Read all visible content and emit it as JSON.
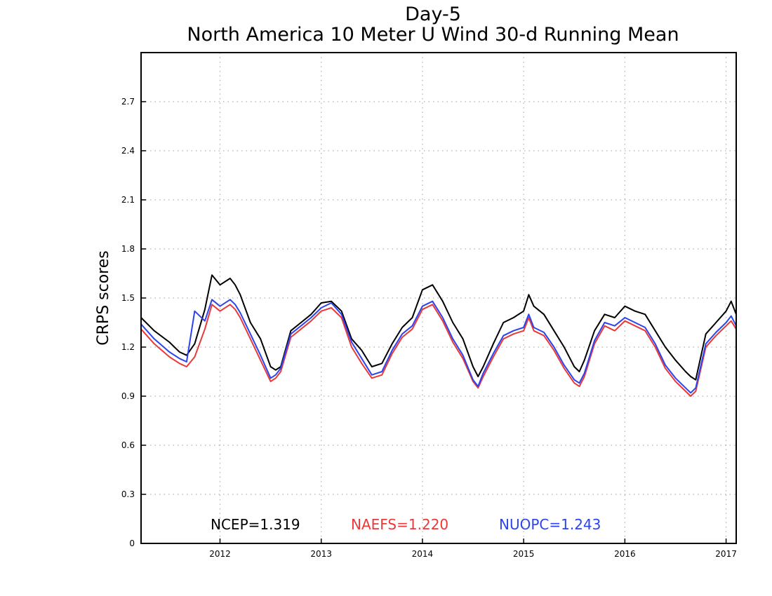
{
  "chart_data": {
    "type": "line",
    "title": "Day-5",
    "subtitle": "North America 10 Meter U Wind 30-d Running Mean",
    "ylabel": "CRPS scores",
    "xlabel": "",
    "xlim": [
      2011.22,
      2017.1
    ],
    "ylim": [
      0,
      3.0
    ],
    "yticks": [
      0,
      0.3,
      0.6,
      0.9,
      1.2,
      1.5,
      1.8,
      2.1,
      2.4,
      2.7
    ],
    "ytick_labels": [
      "0",
      "0.3",
      "0.6",
      "0.9",
      "1.2",
      "1.5",
      "1.8",
      "2.1",
      "2.4",
      "2.7"
    ],
    "xticks": [
      2012,
      2013,
      2014,
      2015,
      2016,
      2017
    ],
    "xtick_labels": [
      "2012",
      "2013",
      "2014",
      "2015",
      "2016",
      "2017"
    ],
    "grid": true,
    "legend_position": "bottom-center",
    "x": [
      2011.22,
      2011.35,
      2011.5,
      2011.6,
      2011.67,
      2011.75,
      2011.85,
      2011.92,
      2012.0,
      2012.1,
      2012.15,
      2012.2,
      2012.3,
      2012.4,
      2012.5,
      2012.55,
      2012.6,
      2012.7,
      2012.8,
      2012.9,
      2013.0,
      2013.1,
      2013.2,
      2013.3,
      2013.4,
      2013.5,
      2013.6,
      2013.7,
      2013.8,
      2013.9,
      2014.0,
      2014.1,
      2014.2,
      2014.3,
      2014.4,
      2014.5,
      2014.55,
      2014.6,
      2014.7,
      2014.8,
      2014.9,
      2015.0,
      2015.05,
      2015.1,
      2015.2,
      2015.3,
      2015.4,
      2015.5,
      2015.55,
      2015.6,
      2015.7,
      2015.8,
      2015.9,
      2016.0,
      2016.1,
      2016.2,
      2016.3,
      2016.4,
      2016.5,
      2016.6,
      2016.65,
      2016.7,
      2016.8,
      2016.9,
      2017.0,
      2017.05,
      2017.1
    ],
    "series": [
      {
        "name": "NCEP",
        "color": "#000000",
        "values": [
          1.38,
          1.3,
          1.23,
          1.17,
          1.15,
          1.22,
          1.43,
          1.64,
          1.58,
          1.62,
          1.58,
          1.52,
          1.35,
          1.25,
          1.08,
          1.06,
          1.08,
          1.3,
          1.35,
          1.4,
          1.47,
          1.48,
          1.42,
          1.25,
          1.18,
          1.08,
          1.1,
          1.22,
          1.32,
          1.38,
          1.55,
          1.58,
          1.48,
          1.35,
          1.25,
          1.08,
          1.02,
          1.08,
          1.22,
          1.35,
          1.38,
          1.42,
          1.52,
          1.45,
          1.4,
          1.3,
          1.2,
          1.08,
          1.05,
          1.12,
          1.3,
          1.4,
          1.38,
          1.45,
          1.42,
          1.4,
          1.3,
          1.2,
          1.12,
          1.05,
          1.02,
          1.0,
          1.28,
          1.35,
          1.42,
          1.48,
          1.4
        ]
      },
      {
        "name": "NAEFS",
        "color": "#e83a3a",
        "values": [
          1.31,
          1.22,
          1.14,
          1.1,
          1.08,
          1.14,
          1.31,
          1.46,
          1.42,
          1.46,
          1.43,
          1.38,
          1.25,
          1.12,
          0.99,
          1.01,
          1.05,
          1.26,
          1.31,
          1.36,
          1.42,
          1.44,
          1.38,
          1.2,
          1.1,
          1.01,
          1.03,
          1.16,
          1.26,
          1.31,
          1.43,
          1.46,
          1.36,
          1.23,
          1.13,
          0.99,
          0.95,
          1.02,
          1.14,
          1.25,
          1.28,
          1.3,
          1.38,
          1.3,
          1.27,
          1.18,
          1.07,
          0.98,
          0.96,
          1.02,
          1.22,
          1.33,
          1.3,
          1.36,
          1.33,
          1.3,
          1.2,
          1.07,
          0.99,
          0.93,
          0.9,
          0.93,
          1.2,
          1.27,
          1.33,
          1.36,
          1.31
        ]
      },
      {
        "name": "NUOPC",
        "color": "#2b44ee",
        "values": [
          1.34,
          1.25,
          1.17,
          1.13,
          1.11,
          1.42,
          1.36,
          1.49,
          1.45,
          1.49,
          1.46,
          1.41,
          1.28,
          1.15,
          1.01,
          1.03,
          1.07,
          1.28,
          1.33,
          1.38,
          1.44,
          1.47,
          1.4,
          1.23,
          1.13,
          1.03,
          1.05,
          1.18,
          1.28,
          1.33,
          1.45,
          1.48,
          1.38,
          1.25,
          1.15,
          1.0,
          0.96,
          1.04,
          1.16,
          1.27,
          1.3,
          1.32,
          1.4,
          1.32,
          1.29,
          1.2,
          1.09,
          1.0,
          0.98,
          1.04,
          1.24,
          1.35,
          1.33,
          1.38,
          1.35,
          1.32,
          1.22,
          1.09,
          1.01,
          0.95,
          0.92,
          0.95,
          1.22,
          1.29,
          1.35,
          1.39,
          1.33
        ]
      }
    ],
    "legend": [
      {
        "label": "NCEP=1.319",
        "color": "#000000"
      },
      {
        "label": "NAEFS=1.220",
        "color": "#e83a3a"
      },
      {
        "label": "NUOPC=1.243",
        "color": "#2b44ee"
      }
    ]
  }
}
